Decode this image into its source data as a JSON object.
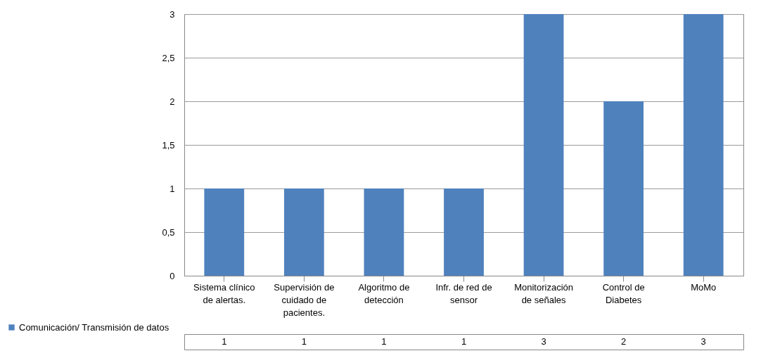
{
  "chart_data": {
    "type": "bar",
    "categories": [
      "Sistema clínico de alertas.",
      "Supervisión de cuidado de pacientes.",
      "Algoritmo de detección",
      "Infr. de red de sensor",
      "Monitorización de señales",
      "Control de Diabetes",
      "MoMo"
    ],
    "series": [
      {
        "name": "Comunicación/ Transmisión de datos",
        "color": "#4f81bd",
        "values": [
          1,
          1,
          1,
          1,
          3,
          2,
          3
        ]
      }
    ],
    "ylim": [
      0,
      3
    ],
    "yticks": [
      0,
      {
        "value": 0.5,
        "label": "0,5"
      },
      1,
      {
        "value": 1.5,
        "label": "1,5"
      },
      2,
      {
        "value": 2.5,
        "label": "2,5"
      },
      3
    ],
    "grid": "y",
    "legend": "bottom left",
    "data_labels": true
  }
}
